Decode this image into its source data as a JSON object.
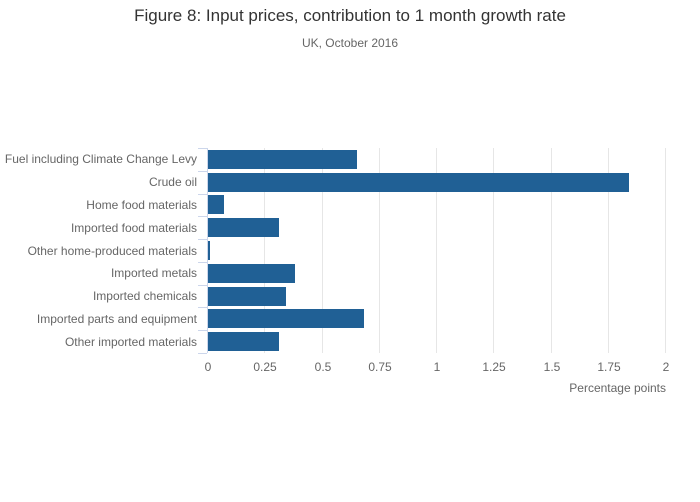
{
  "chart_data": {
    "type": "bar",
    "orientation": "horizontal",
    "title": "Figure 8: Input prices, contribution to 1 month growth rate",
    "subtitle": "UK, October 2016",
    "xlabel": "Percentage points",
    "categories": [
      "Fuel including Climate Change Levy",
      "Crude oil",
      "Home food materials",
      "Imported food materials",
      "Other home-produced materials",
      "Imported metals",
      "Imported chemicals",
      "Imported parts and equipment",
      "Other imported materials"
    ],
    "values": [
      0.65,
      1.84,
      0.07,
      0.31,
      0.01,
      0.38,
      0.34,
      0.68,
      0.31
    ],
    "xlim": [
      0,
      2
    ],
    "xticks": [
      0,
      0.25,
      0.5,
      0.75,
      1,
      1.25,
      1.5,
      1.75,
      2
    ],
    "xtick_labels": [
      "0",
      "0.25",
      "0.5",
      "0.75",
      "1",
      "1.25",
      "1.5",
      "1.75",
      "2"
    ],
    "grid": "vertical-only",
    "legend": "none",
    "colors": {
      "bar": "#206095",
      "gridline": "#e6e6e6",
      "axis_line": "#ccd6eb",
      "title_text": "#333333",
      "label_text": "#666666"
    }
  }
}
